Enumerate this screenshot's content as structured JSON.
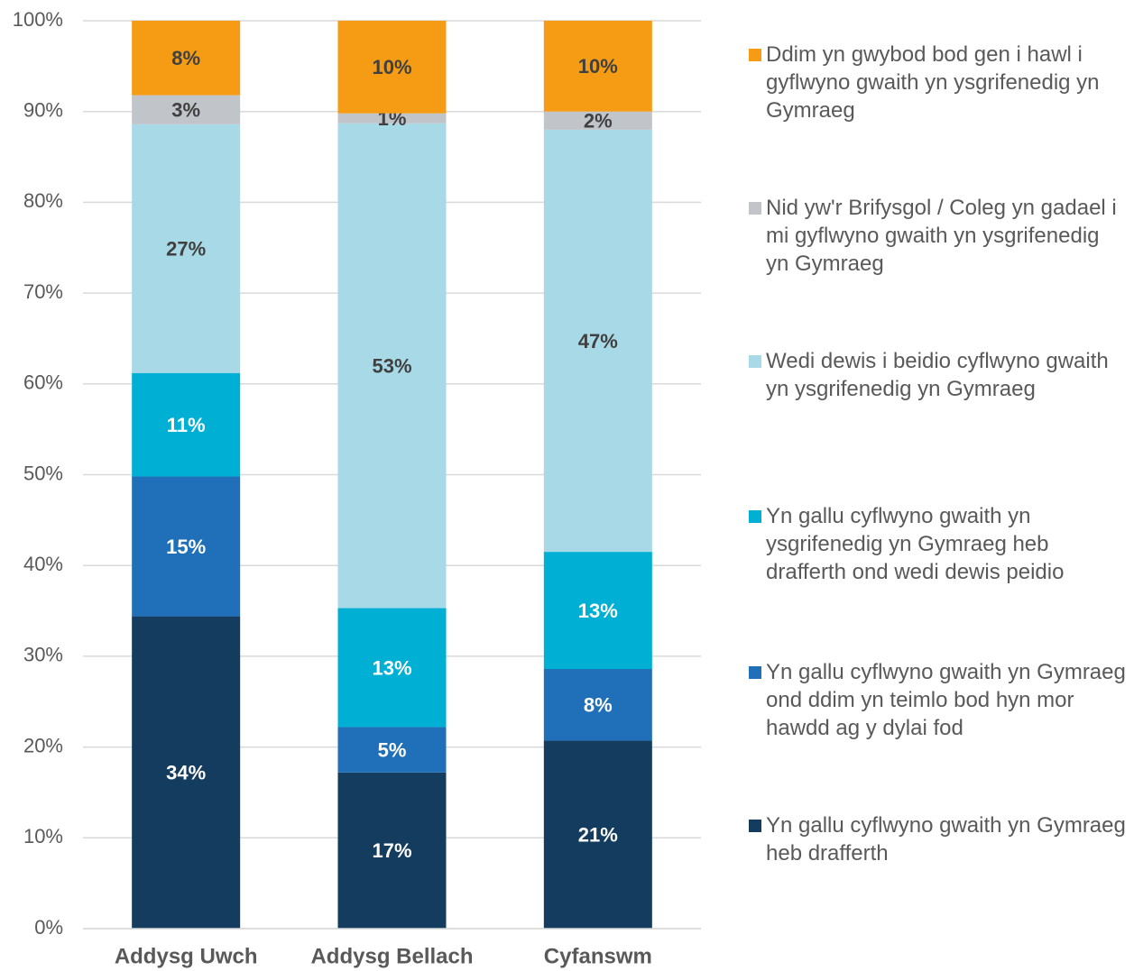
{
  "chart_data": {
    "type": "stacked_bar",
    "categories": [
      "Addysg Uwch",
      "Addysg Bellach",
      "Cyfanswm"
    ],
    "series": [
      {
        "name": "Yn gallu cyflwyno gwaith yn Gymraeg heb drafferth",
        "color": "#133c5e",
        "values": [
          34.4,
          17.2,
          20.7
        ],
        "value_labels": [
          "34%",
          "17%",
          "21%"
        ]
      },
      {
        "name": "Yn gallu cyflwyno gwaith yn Gymraeg ond ddim yn teimlo bod hyn mor hawdd ag y dylai fod",
        "color": "#1f70b8",
        "values": [
          15.4,
          5.0,
          7.9
        ],
        "value_labels": [
          "15%",
          "5%",
          "8%"
        ]
      },
      {
        "name": "Yn gallu cyflwyno gwaith yn ysgrifenedig yn Gymraeg heb drafferth ond wedi dewis peidio",
        "color": "#00afd4",
        "values": [
          11.4,
          13.1,
          12.9
        ],
        "value_labels": [
          "11%",
          "13%",
          "13%"
        ]
      },
      {
        "name": "Wedi dewis i beidio cyflwyno gwaith yn ysgrifenedig yn Gymraeg",
        "color": "#a7d9e7",
        "values": [
          27.4,
          53.4,
          46.5
        ],
        "value_labels": [
          "27%",
          "53%",
          "47%"
        ]
      },
      {
        "name": "Nid yw'r Brifysgol / Coleg yn gadael i mi gyflwyno gwaith yn ysgrifenedig yn Gymraeg",
        "color": "#c1c4c8",
        "values": [
          3.2,
          1.1,
          2.0
        ],
        "value_labels": [
          "3%",
          "1%",
          "2%"
        ]
      },
      {
        "name": "Ddim yn gwybod bod gen i hawl i gyflwyno gwaith yn ysgrifenedig yn Gymraeg",
        "color": "#f59c14",
        "values": [
          8.2,
          10.2,
          10.0
        ],
        "value_labels": [
          "8%",
          "10%",
          "10%"
        ]
      }
    ],
    "ylim": [
      0,
      100
    ],
    "yticks": [
      {
        "value": 0,
        "label": "0%"
      },
      {
        "value": 10,
        "label": "10%"
      },
      {
        "value": 20,
        "label": "20%"
      },
      {
        "value": 30,
        "label": "30%"
      },
      {
        "value": 40,
        "label": "40%"
      },
      {
        "value": 50,
        "label": "50%"
      },
      {
        "value": 60,
        "label": "60%"
      },
      {
        "value": 70,
        "label": "70%"
      },
      {
        "value": 80,
        "label": "80%"
      },
      {
        "value": 90,
        "label": "90%"
      },
      {
        "value": 100,
        "label": "100%"
      }
    ],
    "grid": true,
    "legend": "right"
  }
}
